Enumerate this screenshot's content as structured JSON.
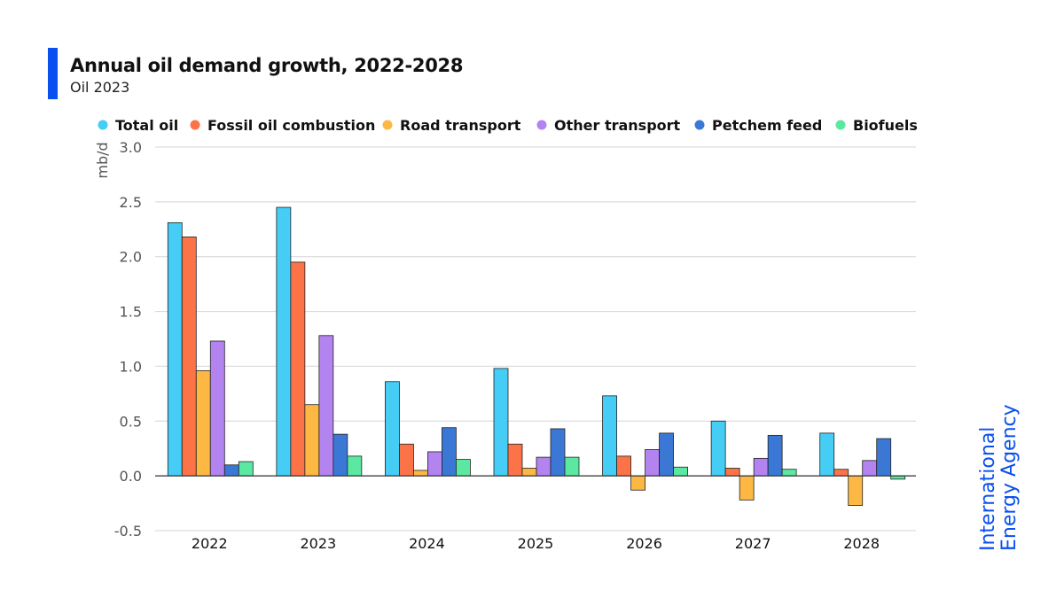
{
  "header": {
    "title": "Annual oil demand growth, 2022-2028",
    "subtitle": "Oil 2023"
  },
  "logo": {
    "line1": "International",
    "line2": "Energy Agency",
    "color": "#0a50f0"
  },
  "chart_data": {
    "type": "bar",
    "categories": [
      "2022",
      "2023",
      "2024",
      "2025",
      "2026",
      "2027",
      "2028"
    ],
    "series": [
      {
        "name": "Total oil",
        "color": "#45cdf5",
        "values": [
          2.31,
          2.45,
          0.86,
          0.98,
          0.73,
          0.5,
          0.39
        ]
      },
      {
        "name": "Fossil oil combustion",
        "color": "#fc7347",
        "values": [
          2.18,
          1.95,
          0.29,
          0.29,
          0.18,
          0.07,
          0.06
        ]
      },
      {
        "name": "Road transport",
        "color": "#fcb843",
        "values": [
          0.96,
          0.65,
          0.05,
          0.07,
          -0.13,
          -0.22,
          -0.27
        ]
      },
      {
        "name": "Other transport",
        "color": "#b383ef",
        "values": [
          1.23,
          1.28,
          0.22,
          0.17,
          0.24,
          0.16,
          0.14
        ]
      },
      {
        "name": "Petchem feed",
        "color": "#3b78d6",
        "values": [
          0.1,
          0.38,
          0.44,
          0.43,
          0.39,
          0.37,
          0.34
        ]
      },
      {
        "name": "Biofuels",
        "color": "#5be8a0",
        "values": [
          0.13,
          0.18,
          0.15,
          0.17,
          0.08,
          0.06,
          -0.03
        ]
      }
    ],
    "ylabel": "mb/d",
    "ylim": [
      -0.5,
      3.0
    ],
    "yticks": [
      "-0.5",
      "0.0",
      "0.5",
      "1.0",
      "1.5",
      "2.0",
      "2.5",
      "3.0"
    ],
    "grid": true,
    "legend_position": "top"
  }
}
